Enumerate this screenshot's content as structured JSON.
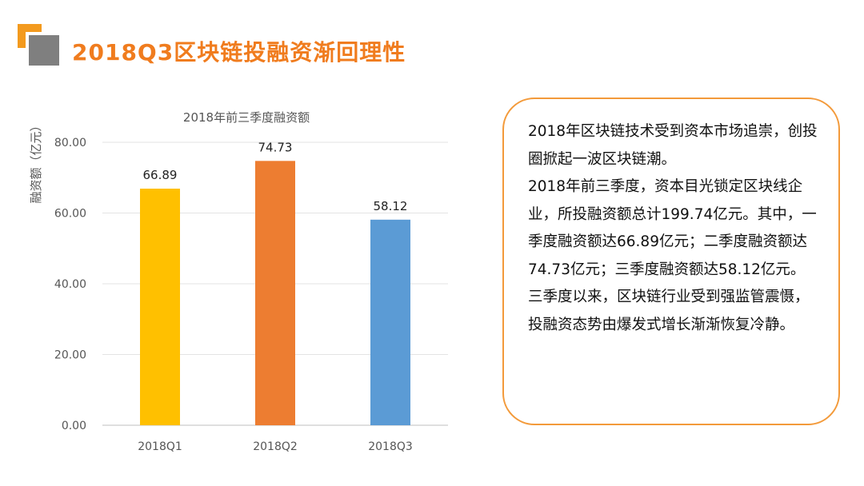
{
  "title": "2018Q3区块链投融资渐回理性",
  "chart_data": {
    "type": "bar",
    "title": "2018年前三季度融资额",
    "ylabel": "融资额（亿元）",
    "xlabel": "",
    "categories": [
      "2018Q1",
      "2018Q2",
      "2018Q3"
    ],
    "values": [
      66.89,
      74.73,
      58.12
    ],
    "value_labels": [
      "66.89",
      "74.73",
      "58.12"
    ],
    "colors": [
      "#ffc000",
      "#ed7d31",
      "#5b9bd5"
    ],
    "ylim": [
      0,
      80
    ],
    "yticks": [
      0,
      20,
      40,
      60,
      80
    ],
    "ytick_labels": [
      "0.00",
      "20.00",
      "40.00",
      "60.00",
      "80.00"
    ],
    "grid": true,
    "legend": "none"
  },
  "description_paragraphs": [
    "2018年区块链技术受到资本市场追崇，创投圈掀起一波区块链潮。",
    "2018年前三季度，资本目光锁定区块线企业，所投融资额总计199.74亿元。其中，一季度融资额达66.89亿元；二季度融资额达74.73亿元；三季度融资额达58.12亿元。",
    "三季度以来，区块链行业受到强监管震慑，投融资态势由爆发式增长渐渐恢复冷静。"
  ]
}
